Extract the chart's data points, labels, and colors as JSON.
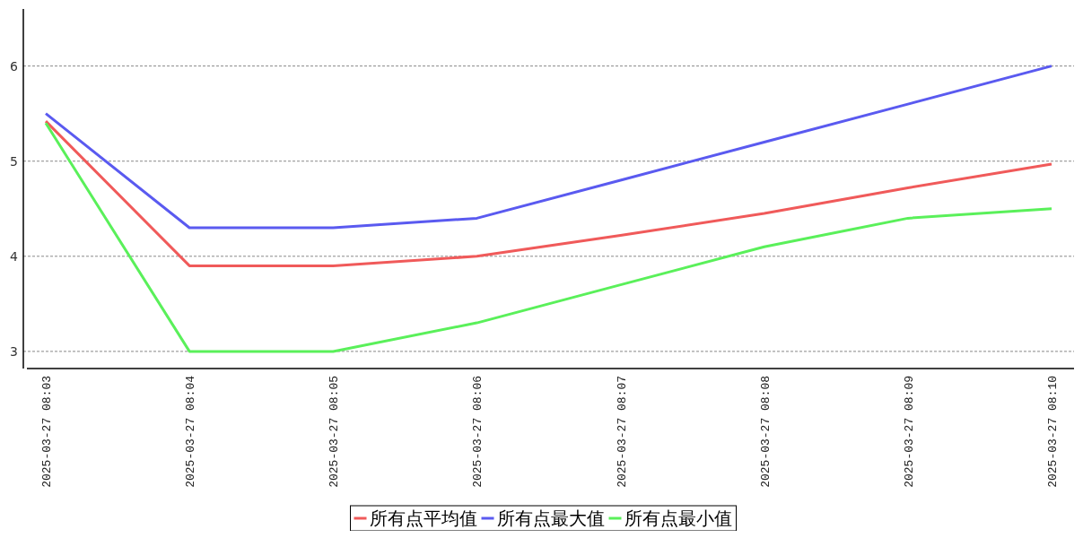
{
  "chart_data": {
    "type": "line",
    "categories": [
      "2025-03-27 08:03",
      "2025-03-27 08:04",
      "2025-03-27 08:05",
      "2025-03-27 08:06",
      "2025-03-27 08:07",
      "2025-03-27 08:08",
      "2025-03-27 08:09",
      "2025-03-27 08:10"
    ],
    "series": [
      {
        "name": "所有点平均值",
        "color": "#f05a5a",
        "values": [
          5.42,
          3.9,
          3.9,
          4.0,
          4.22,
          4.45,
          4.72,
          4.97
        ]
      },
      {
        "name": "所有点最大值",
        "color": "#5a5af0",
        "values": [
          5.5,
          4.3,
          4.3,
          4.4,
          4.8,
          5.2,
          5.6,
          6.0
        ]
      },
      {
        "name": "所有点最小值",
        "color": "#5af05a",
        "values": [
          5.4,
          3.0,
          3.0,
          3.3,
          3.7,
          4.1,
          4.4,
          4.5
        ]
      }
    ],
    "ylim": [
      2.82,
      6.6
    ],
    "yticks": [
      3,
      4,
      5,
      6
    ],
    "grid": "y",
    "legend": "bottom",
    "marker": "none",
    "line_style": "solid"
  }
}
